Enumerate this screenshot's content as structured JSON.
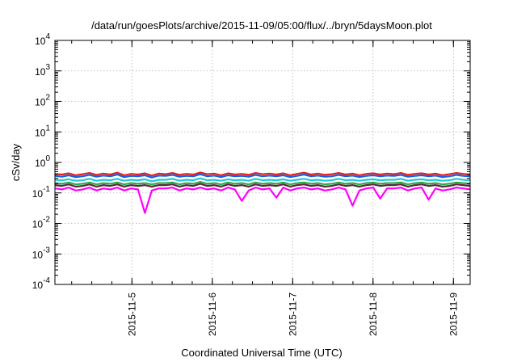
{
  "chart_data": {
    "type": "line",
    "title": "/data/run/goesPlots/archive/2015-11-09/05:00/flux/../bryn/5daysMoon.plot",
    "xlabel": "Coordinated Universal Time (UTC)",
    "ylabel": "cSv/day",
    "yscale": "log",
    "ylim": [
      0.0001,
      10000
    ],
    "y_ticks": [
      {
        "value": 0.0001,
        "base": "10",
        "exp": "-4"
      },
      {
        "value": 0.001,
        "base": "10",
        "exp": "-3"
      },
      {
        "value": 0.01,
        "base": "10",
        "exp": "-2"
      },
      {
        "value": 0.1,
        "base": "10",
        "exp": "-1"
      },
      {
        "value": 1,
        "base": "10",
        "exp": "0"
      },
      {
        "value": 10,
        "base": "10",
        "exp": "1"
      },
      {
        "value": 100,
        "base": "10",
        "exp": "2"
      },
      {
        "value": 1000,
        "base": "10",
        "exp": "3"
      },
      {
        "value": 10000,
        "base": "10",
        "exp": "4"
      }
    ],
    "xlim": [
      "2015-11-04 01:00",
      "2015-11-09 05:00"
    ],
    "x_ticks": [
      "2015-11-5",
      "2015-11-6",
      "2015-11-7",
      "2015-11-8",
      "2015-11-9"
    ],
    "x_tick_dates": [
      "2015-11-05 00:00",
      "2015-11-06 00:00",
      "2015-11-07 00:00",
      "2015-11-08 00:00",
      "2015-11-09 00:00"
    ],
    "grid": true,
    "series": [
      {
        "color": "#e8201c",
        "values": [
          0.42,
          0.4,
          0.44,
          0.38,
          0.41,
          0.45,
          0.39,
          0.43,
          0.4,
          0.46,
          0.38,
          0.42,
          0.4,
          0.44,
          0.37,
          0.43,
          0.41,
          0.45,
          0.39,
          0.42,
          0.4,
          0.47,
          0.41,
          0.43,
          0.38,
          0.44,
          0.4,
          0.42,
          0.39,
          0.45,
          0.41,
          0.43,
          0.4,
          0.44,
          0.38,
          0.42,
          0.46,
          0.4,
          0.43,
          0.39,
          0.41,
          0.45,
          0.4,
          0.43,
          0.38,
          0.42,
          0.44,
          0.4,
          0.43,
          0.41,
          0.45,
          0.39,
          0.42,
          0.44,
          0.4,
          0.43,
          0.38,
          0.41,
          0.45,
          0.42,
          0.4
        ]
      },
      {
        "color": "#1560e0",
        "values": [
          0.36,
          0.34,
          0.38,
          0.33,
          0.35,
          0.39,
          0.34,
          0.37,
          0.35,
          0.4,
          0.33,
          0.36,
          0.35,
          0.38,
          0.32,
          0.37,
          0.36,
          0.39,
          0.34,
          0.36,
          0.35,
          0.41,
          0.35,
          0.37,
          0.33,
          0.38,
          0.35,
          0.36,
          0.34,
          0.39,
          0.35,
          0.37,
          0.35,
          0.38,
          0.33,
          0.36,
          0.4,
          0.35,
          0.37,
          0.34,
          0.35,
          0.39,
          0.35,
          0.37,
          0.33,
          0.36,
          0.38,
          0.35,
          0.37,
          0.36,
          0.39,
          0.34,
          0.36,
          0.38,
          0.35,
          0.37,
          0.33,
          0.35,
          0.39,
          0.36,
          0.35
        ]
      },
      {
        "color": "#20c8d8",
        "values": [
          0.27,
          0.26,
          0.28,
          0.25,
          0.26,
          0.29,
          0.25,
          0.27,
          0.26,
          0.29,
          0.25,
          0.27,
          0.26,
          0.28,
          0.24,
          0.27,
          0.27,
          0.29,
          0.25,
          0.27,
          0.26,
          0.3,
          0.26,
          0.27,
          0.25,
          0.28,
          0.26,
          0.27,
          0.25,
          0.29,
          0.26,
          0.27,
          0.26,
          0.28,
          0.25,
          0.27,
          0.29,
          0.26,
          0.27,
          0.25,
          0.26,
          0.29,
          0.26,
          0.27,
          0.25,
          0.27,
          0.28,
          0.26,
          0.27,
          0.27,
          0.29,
          0.25,
          0.27,
          0.28,
          0.26,
          0.27,
          0.25,
          0.26,
          0.29,
          0.27,
          0.26
        ]
      },
      {
        "color": "#2fa84a",
        "values": [
          0.21,
          0.2,
          0.22,
          0.19,
          0.2,
          0.22,
          0.19,
          0.21,
          0.2,
          0.22,
          0.19,
          0.21,
          0.2,
          0.21,
          0.19,
          0.21,
          0.21,
          0.22,
          0.19,
          0.21,
          0.2,
          0.23,
          0.2,
          0.21,
          0.19,
          0.22,
          0.2,
          0.21,
          0.19,
          0.22,
          0.2,
          0.21,
          0.2,
          0.22,
          0.19,
          0.21,
          0.22,
          0.2,
          0.21,
          0.19,
          0.2,
          0.22,
          0.2,
          0.21,
          0.19,
          0.21,
          0.22,
          0.2,
          0.21,
          0.21,
          0.22,
          0.19,
          0.21,
          0.22,
          0.2,
          0.21,
          0.19,
          0.2,
          0.22,
          0.21,
          0.2
        ]
      },
      {
        "color": "#5a2a3a",
        "values": [
          0.18,
          0.17,
          0.19,
          0.16,
          0.17,
          0.19,
          0.16,
          0.18,
          0.17,
          0.19,
          0.16,
          0.18,
          0.17,
          0.18,
          0.16,
          0.18,
          0.18,
          0.19,
          0.16,
          0.18,
          0.17,
          0.2,
          0.17,
          0.18,
          0.16,
          0.19,
          0.17,
          0.18,
          0.16,
          0.19,
          0.17,
          0.18,
          0.17,
          0.19,
          0.16,
          0.18,
          0.19,
          0.17,
          0.18,
          0.16,
          0.17,
          0.19,
          0.17,
          0.18,
          0.16,
          0.18,
          0.19,
          0.17,
          0.18,
          0.18,
          0.19,
          0.16,
          0.18,
          0.19,
          0.17,
          0.18,
          0.16,
          0.17,
          0.19,
          0.18,
          0.17
        ]
      },
      {
        "color": "#ff00ff",
        "values": [
          0.14,
          0.13,
          0.15,
          0.12,
          0.13,
          0.15,
          0.12,
          0.14,
          0.13,
          0.15,
          0.12,
          0.14,
          0.13,
          0.022,
          0.12,
          0.14,
          0.14,
          0.15,
          0.12,
          0.14,
          0.13,
          0.15,
          0.13,
          0.14,
          0.12,
          0.15,
          0.13,
          0.055,
          0.12,
          0.15,
          0.13,
          0.14,
          0.07,
          0.15,
          0.12,
          0.14,
          0.15,
          0.13,
          0.14,
          0.12,
          0.13,
          0.15,
          0.13,
          0.038,
          0.12,
          0.14,
          0.15,
          0.065,
          0.14,
          0.14,
          0.15,
          0.12,
          0.14,
          0.15,
          0.06,
          0.14,
          0.12,
          0.13,
          0.15,
          0.14,
          0.13
        ]
      }
    ]
  }
}
